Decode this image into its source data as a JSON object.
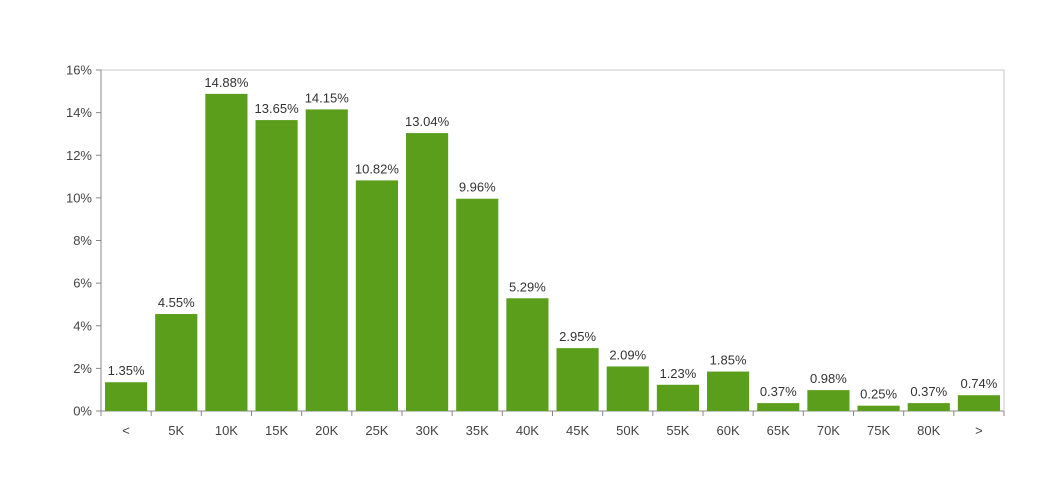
{
  "colors": {
    "bar": "#5a9e1c",
    "axis": "#888888",
    "frame": "#c8c8c8",
    "text": "#444444"
  },
  "chart_data": {
    "type": "bar",
    "title": "",
    "xlabel": "",
    "ylabel": "",
    "categories": [
      "<",
      "5K",
      "10K",
      "15K",
      "20K",
      "25K",
      "30K",
      "35K",
      "40K",
      "45K",
      "50K",
      "55K",
      "60K",
      "65K",
      "70K",
      "75K",
      "80K",
      ">"
    ],
    "values": [
      1.35,
      4.55,
      14.88,
      13.65,
      14.15,
      10.82,
      13.04,
      9.96,
      5.29,
      2.95,
      2.09,
      1.23,
      1.85,
      0.37,
      0.98,
      0.25,
      0.37,
      0.74
    ],
    "value_labels": [
      "1.35%",
      "4.55%",
      "14.88%",
      "13.65%",
      "14.15%",
      "10.82%",
      "13.04%",
      "9.96%",
      "5.29%",
      "2.95%",
      "2.09%",
      "1.23%",
      "1.85%",
      "0.37%",
      "0.98%",
      "0.25%",
      "0.37%",
      "0.74%"
    ],
    "y_ticks": [
      0,
      2,
      4,
      6,
      8,
      10,
      12,
      14,
      16
    ],
    "y_tick_labels": [
      "0%",
      "2%",
      "4%",
      "6%",
      "8%",
      "10%",
      "12%",
      "14%",
      "16%"
    ],
    "ylim": [
      0,
      16
    ],
    "grid": false,
    "legend": "none"
  }
}
